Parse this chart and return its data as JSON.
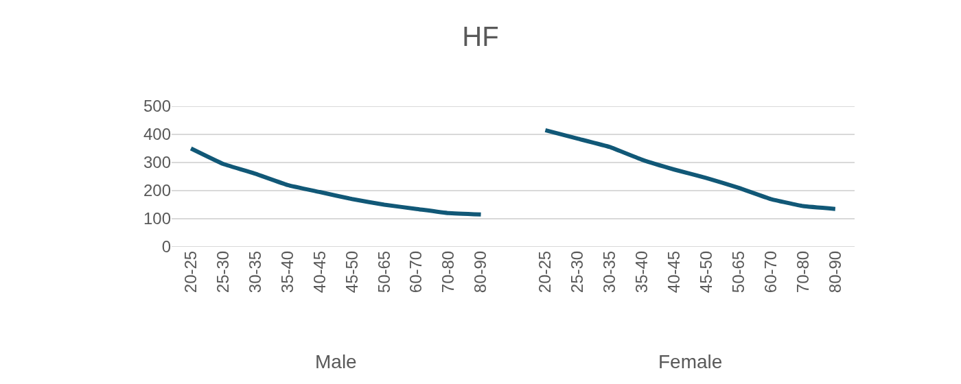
{
  "chart_data": {
    "type": "line",
    "title": "HF",
    "categories": [
      "20-25",
      "25-30",
      "30-35",
      "35-40",
      "40-45",
      "45-50",
      "50-65",
      "60-70",
      "70-80",
      "80-90",
      null,
      "20-25",
      "25-30",
      "30-35",
      "35-40",
      "40-45",
      "45-50",
      "50-65",
      "60-70",
      "70-80",
      "80-90"
    ],
    "series": [
      {
        "color": "#115877",
        "values": [
          350,
          295,
          260,
          220,
          195,
          170,
          150,
          135,
          120,
          115,
          null,
          415,
          385,
          355,
          310,
          275,
          245,
          210,
          170,
          145,
          135
        ]
      }
    ],
    "annotations": [
      "Male",
      "Female"
    ],
    "ylim": [
      0,
      500
    ],
    "yticks": [
      0,
      100,
      200,
      300,
      400,
      500
    ],
    "grid": "y",
    "legend": false,
    "line_style": "solid",
    "marker": "none"
  }
}
